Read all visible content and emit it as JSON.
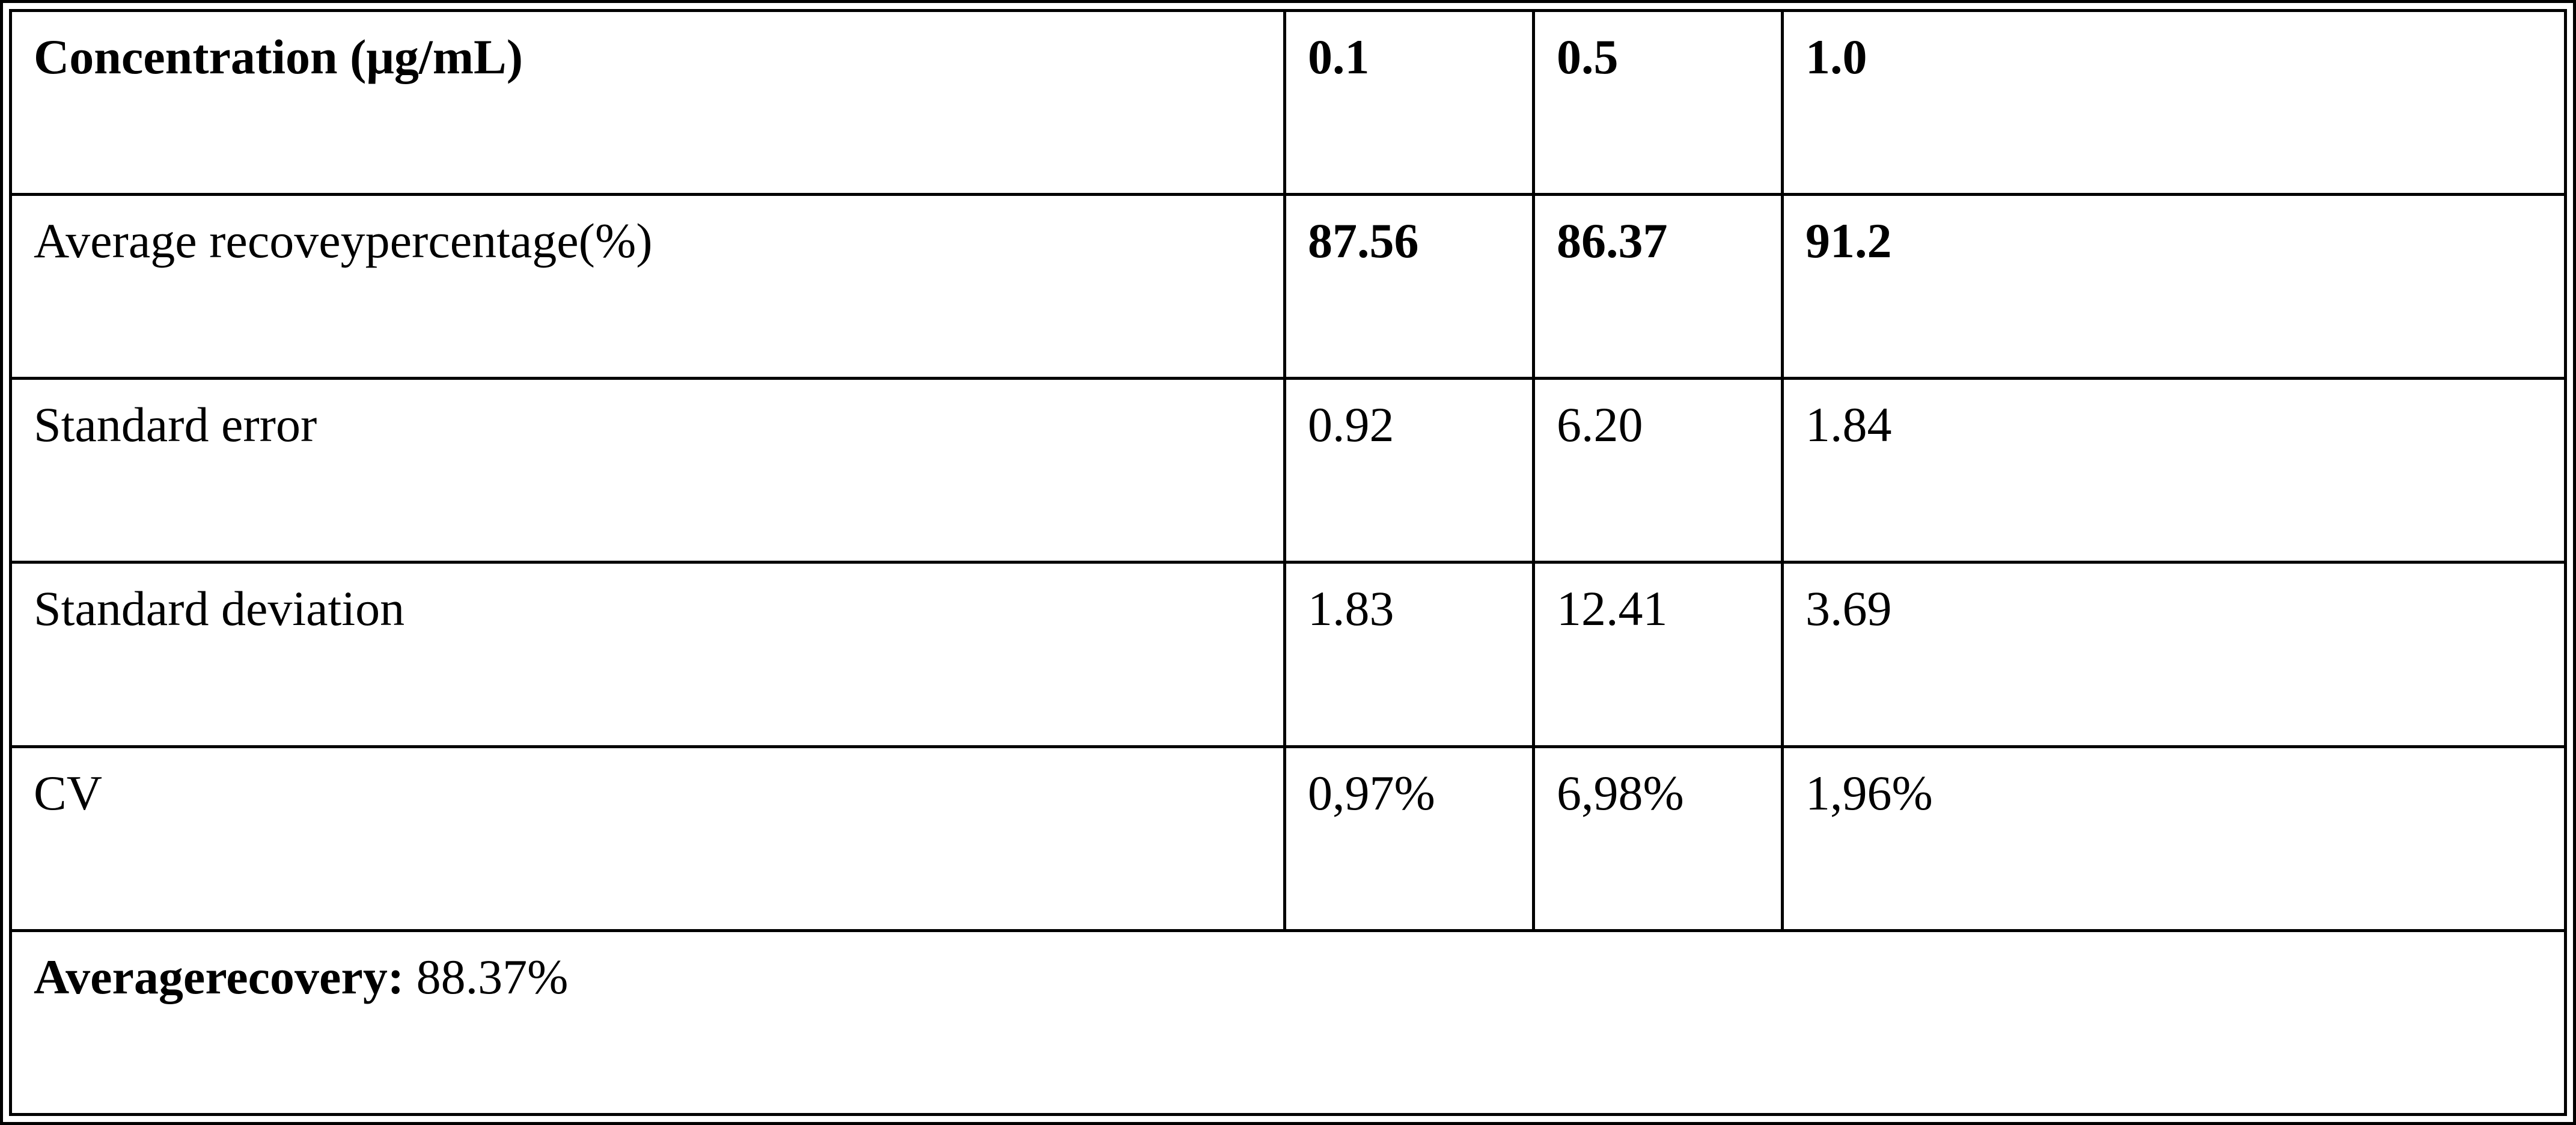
{
  "table": {
    "header": [
      "Concentration (μg/mL)",
      "0.1",
      "0.5",
      "1.0"
    ],
    "rows": [
      [
        "Average recoveypercentage(%)",
        "87.56",
        "86.37",
        "91.2"
      ],
      [
        "Standard error",
        "0.92",
        "6.20",
        "1.84"
      ],
      [
        "Standard deviation",
        "1.83",
        "12.41",
        "3.69"
      ],
      [
        "CV",
        "0,97%",
        "6,98%",
        "1,96%"
      ]
    ],
    "footer": {
      "label": "Averagerecovery:",
      "value": "88.37%"
    }
  }
}
